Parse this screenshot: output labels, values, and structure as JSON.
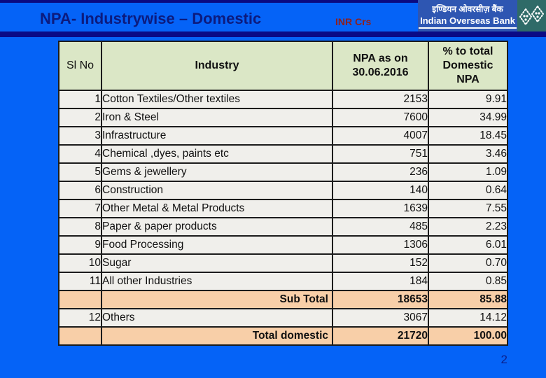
{
  "header": {
    "title": "NPA- Industrywise – Domestic",
    "currency_note": "INR Crs"
  },
  "logo": {
    "name_hindi": "इण्डियन ओवरसीज़ बैंक",
    "name_english": "Indian Overseas Bank",
    "emblem_icon": "iob-emblem-icon"
  },
  "table": {
    "headers": [
      "Sl No",
      "Industry",
      "NPA as on\n30.06.2016",
      "% to total\nDomestic\nNPA"
    ],
    "rows": [
      {
        "sl": "1",
        "industry": "Cotton Textiles/Other textiles",
        "npa": "2153",
        "pct": "9.91",
        "total": false
      },
      {
        "sl": "2",
        "industry": "Iron & Steel",
        "npa": "7600",
        "pct": "34.99",
        "total": false
      },
      {
        "sl": "3",
        "industry": "Infrastructure",
        "npa": "4007",
        "pct": "18.45",
        "total": false
      },
      {
        "sl": "4",
        "industry": "Chemical ,dyes, paints etc",
        "npa": "751",
        "pct": "3.46",
        "total": false
      },
      {
        "sl": "5",
        "industry": "Gems & jewellery",
        "npa": "236",
        "pct": "1.09",
        "total": false
      },
      {
        "sl": "6",
        "industry": "Construction",
        "npa": "140",
        "pct": "0.64",
        "total": false
      },
      {
        "sl": "7",
        "industry": "Other Metal & Metal Products",
        "npa": "1639",
        "pct": "7.55",
        "total": false
      },
      {
        "sl": "8",
        "industry": "Paper & paper products",
        "npa": "485",
        "pct": "2.23",
        "total": false
      },
      {
        "sl": "9",
        "industry": "Food Processing",
        "npa": "1306",
        "pct": "6.01",
        "total": false
      },
      {
        "sl": "10",
        "industry": "Sugar",
        "npa": "152",
        "pct": "0.70",
        "total": false
      },
      {
        "sl": "11",
        "industry": "All other Industries",
        "npa": "184",
        "pct": "0.85",
        "total": false
      },
      {
        "sl": "",
        "industry": "Sub Total",
        "npa": "18653",
        "pct": "85.88",
        "total": true
      },
      {
        "sl": "12",
        "industry": "Others",
        "npa": "3067",
        "pct": "14.12",
        "total": false
      },
      {
        "sl": "",
        "industry": "Total domestic",
        "npa": "21720",
        "pct": "100.00",
        "total": true
      }
    ]
  },
  "footer": {
    "page_number": "2"
  },
  "colors": {
    "slide_background": "#0563f7",
    "navy_bar": "#0a0a85",
    "title_text": "#0c1b7e",
    "currency_text": "#8b2121",
    "logo_background": "#2e56b2",
    "emblem_background": "#2f6b68",
    "header_cell": "#dbe7c6",
    "row_cell": "#f0efeb",
    "total_cell": "#f8cfa8",
    "table_border": "#1c1c1c"
  }
}
